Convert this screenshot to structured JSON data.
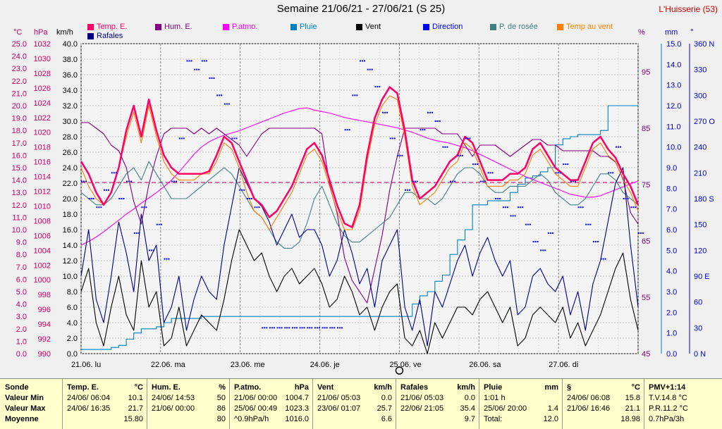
{
  "title": "Semaine 21/06/21 - 27/06/21 (S 25)",
  "station": "L'Huisserie (53)",
  "units": {
    "temp": "°C",
    "press": "hPa",
    "wind": "km/h",
    "hum": "%",
    "rain": "mm",
    "dir": "°"
  },
  "legend": [
    {
      "label": "Temp. E.",
      "color": "#ff0066"
    },
    {
      "label": "Hum. E.",
      "color": "#800080"
    },
    {
      "label": "P.atmo.",
      "color": "#ff00ff"
    },
    {
      "label": "Pluie",
      "color": "#0080c0"
    },
    {
      "label": "Vent",
      "color": "#000000"
    },
    {
      "label": "Direction",
      "color": "#0000ff"
    },
    {
      "label": "P. de rosée",
      "color": "#408080"
    },
    {
      "label": "Temp au vent",
      "color": "#ff8000"
    },
    {
      "label": "Rafales",
      "color": "#000080"
    }
  ],
  "chart_data": {
    "type": "line",
    "days": [
      "21.06. lu",
      "22.06. ma",
      "23.06. me",
      "24.06. je",
      "25.06. ve",
      "26.06. sa",
      "27.06. di"
    ],
    "axes": {
      "temp": {
        "min": 0.0,
        "max": 25.0,
        "ticks": [
          "25.0",
          "24.0",
          "23.0",
          "22.0",
          "21.0",
          "20.0",
          "19.0",
          "18.0",
          "17.0",
          "16.0",
          "15.0",
          "14.0",
          "13.0",
          "12.0",
          "11.0",
          "10.0",
          "9.0",
          "8.0",
          "7.0",
          "6.0",
          "5.0",
          "4.0",
          "3.0",
          "2.0",
          "1.0",
          "0.0"
        ]
      },
      "press": {
        "min": 990,
        "max": 1032,
        "ticks": [
          "1032",
          "1030",
          "1028",
          "1026",
          "1024",
          "1022",
          "1020",
          "1018",
          "1016",
          "1014",
          "1012",
          "1010",
          "1008",
          "1006",
          "1004",
          "1002",
          "1000",
          "998",
          "996",
          "994",
          "992",
          "990"
        ]
      },
      "wind": {
        "min": 0.0,
        "max": 40.0,
        "ticks": [
          "40.0",
          "38.0",
          "36.0",
          "34.0",
          "32.0",
          "30.0",
          "28.0",
          "26.0",
          "24.0",
          "22.0",
          "20.0",
          "18.0",
          "16.0",
          "14.0",
          "12.0",
          "10.0",
          "8.0",
          "6.0",
          "4.0",
          "2.0",
          "0.0"
        ]
      },
      "hum": {
        "min": 45,
        "max": 100,
        "ticks": [
          "95",
          "85",
          "75",
          "65",
          "55",
          "45"
        ]
      },
      "rain": {
        "min": 0.0,
        "max": 15.0,
        "ticks": [
          "15.0",
          "14.0",
          "13.0",
          "12.0",
          "11.0",
          "10.0",
          "9.0",
          "8.0",
          "7.0",
          "6.0",
          "5.0",
          "4.0",
          "3.0",
          "2.0",
          "1.0",
          "0.0"
        ]
      },
      "dir": {
        "min": 0,
        "max": 360,
        "ticks": [
          "360 N",
          "330",
          "300",
          "270 O",
          "240",
          "210",
          "180 S",
          "150",
          "120",
          "90 E",
          "60",
          "30",
          "0 N"
        ]
      }
    },
    "series": [
      {
        "name": "Temp. E.",
        "axis": "temp",
        "color": "#ff0066",
        "values": [
          15.5,
          14.5,
          13.0,
          12.0,
          13.0,
          15.0,
          18.0,
          20.0,
          17.5,
          20.5,
          18.0,
          16.0,
          15.0,
          14.5,
          14.5,
          14.5,
          14.5,
          14.7,
          16.0,
          17.5,
          17.0,
          15.5,
          14.0,
          12.5,
          12.0,
          11.0,
          11.5,
          12.5,
          13.5,
          15.0,
          16.5,
          17.0,
          16.0,
          14.0,
          12.0,
          10.5,
          10.2,
          12.0,
          16.0,
          19.0,
          20.5,
          21.5,
          21.0,
          18.0,
          14.0,
          12.5,
          13.0,
          13.5,
          14.5,
          15.5,
          16.0,
          17.5,
          17.0,
          15.5,
          14.0,
          14.0,
          14.0,
          14.5,
          14.5,
          15.0,
          16.5,
          17.0,
          16.0,
          15.0,
          14.5,
          14.0,
          14.0,
          15.5,
          17.0,
          17.5,
          16.5,
          15.8,
          14.5,
          13.5,
          12.0
        ]
      },
      {
        "name": "Hum. E.",
        "axis": "hum",
        "color": "#800080",
        "values": [
          86,
          86,
          85,
          84,
          82,
          81,
          78,
          72,
          68,
          75,
          80,
          84,
          85,
          85,
          85,
          84,
          85,
          84,
          85,
          84,
          83,
          82,
          80,
          82,
          84,
          85,
          85,
          85,
          85,
          85,
          85,
          85,
          84,
          75,
          70,
          62,
          58,
          56,
          54,
          60,
          66,
          74,
          80,
          85,
          85,
          85,
          85,
          85,
          84,
          84,
          84,
          82,
          80,
          82,
          82,
          82,
          81,
          80,
          81,
          82,
          83,
          83,
          82,
          82,
          81,
          81,
          81,
          81,
          81,
          80,
          80,
          79,
          76,
          70,
          68
        ]
      },
      {
        "name": "P.atmo.",
        "axis": "press",
        "color": "#ff00ff",
        "values": [
          1004.7,
          1005.2,
          1005.8,
          1006.5,
          1007.3,
          1008.1,
          1008.9,
          1009.6,
          1010.4,
          1011.1,
          1011.8,
          1012.6,
          1013.5,
          1014.6,
          1015.8,
          1017.0,
          1018.0,
          1018.7,
          1019.2,
          1019.6,
          1019.9,
          1020.2,
          1020.6,
          1021.0,
          1021.4,
          1021.8,
          1022.2,
          1022.6,
          1022.9,
          1023.2,
          1023.3,
          1023.0,
          1022.8,
          1022.6,
          1022.3,
          1022.0,
          1021.8,
          1021.6,
          1021.4,
          1021.2,
          1021.0,
          1020.8,
          1020.6,
          1020.3,
          1020.0,
          1019.6,
          1019.2,
          1018.9,
          1018.7,
          1018.5,
          1018.2,
          1017.9,
          1017.5,
          1017.0,
          1016.5,
          1016.0,
          1015.5,
          1015.0,
          1014.5,
          1014.0,
          1013.6,
          1013.2,
          1012.8,
          1012.4,
          1012.0,
          1011.6,
          1011.4,
          1011.2,
          1011.2,
          1011.4,
          1011.8,
          1012.2,
          1012.6,
          1013.0,
          1013.4
        ]
      },
      {
        "name": "Pluie",
        "axis": "rain",
        "color": "#0080c0",
        "values": [
          0.2,
          0.2,
          0.2,
          0.2,
          0.3,
          0.4,
          0.7,
          1.0,
          1.2,
          1.2,
          1.3,
          1.5,
          1.7,
          1.7,
          1.7,
          1.7,
          1.8,
          1.8,
          1.8,
          1.8,
          1.8,
          1.8,
          1.8,
          1.8,
          1.8,
          1.8,
          1.8,
          1.8,
          1.8,
          1.8,
          1.8,
          1.8,
          1.8,
          1.8,
          1.8,
          1.8,
          1.8,
          1.8,
          1.8,
          1.8,
          1.8,
          1.8,
          1.8,
          1.8,
          2.4,
          2.8,
          3.0,
          3.5,
          3.8,
          4.8,
          5.5,
          6.0,
          7.2,
          7.2,
          7.4,
          7.4,
          7.4,
          7.8,
          8.2,
          8.5,
          8.6,
          8.8,
          9.0,
          10.1,
          10.4,
          10.5,
          10.6,
          10.6,
          10.6,
          10.8,
          12.0,
          12.0,
          12.0,
          12.0,
          12.0
        ]
      },
      {
        "name": "Vent",
        "axis": "wind",
        "color": "#000000",
        "values": [
          8.0,
          11.0,
          4.0,
          1.0,
          6.0,
          10.0,
          5.0,
          3.0,
          12.0,
          6.0,
          8.0,
          1.0,
          2.0,
          6.0,
          1.0,
          3.0,
          5.0,
          4.0,
          3.0,
          7.0,
          12.0,
          16.0,
          14.0,
          12.0,
          13.0,
          10.0,
          8.0,
          10.0,
          11.0,
          9.0,
          10.0,
          11.0,
          9.0,
          6.0,
          7.0,
          10.0,
          8.0,
          5.0,
          6.0,
          3.0,
          6.0,
          8.0,
          9.0,
          2.0,
          1.0,
          3.0,
          0.0,
          4.0,
          2.0,
          4.0,
          6.0,
          6.0,
          5.0,
          7.0,
          8.0,
          6.0,
          4.0,
          6.0,
          1.0,
          2.0,
          5.0,
          6.0,
          5.0,
          4.0,
          6.0,
          2.0,
          4.0,
          1.0,
          3.0,
          5.0,
          8.0,
          11.0,
          13.0,
          7.0,
          3.0
        ]
      },
      {
        "name": "Rafales",
        "axis": "wind",
        "color": "#000080",
        "values": [
          10.0,
          16.0,
          7.0,
          4.0,
          10.0,
          17.0,
          13.0,
          8.0,
          18.0,
          12.0,
          14.0,
          4.0,
          6.0,
          10.0,
          3.0,
          7.0,
          10.0,
          8.0,
          7.0,
          14.0,
          19.0,
          24.0,
          22.0,
          20.0,
          19.0,
          17.0,
          14.0,
          16.0,
          18.0,
          15.0,
          16.0,
          16.0,
          14.0,
          10.0,
          12.0,
          16.0,
          13.0,
          9.0,
          11.0,
          6.0,
          12.0,
          14.0,
          16.0,
          6.0,
          3.0,
          7.0,
          1.0,
          8.0,
          6.0,
          9.0,
          12.0,
          14.0,
          10.0,
          13.0,
          15.0,
          12.0,
          10.0,
          12.0,
          5.0,
          6.0,
          10.0,
          11.0,
          9.0,
          8.0,
          10.0,
          5.0,
          8.0,
          3.0,
          9.0,
          12.0,
          17.0,
          22.0,
          24.0,
          14.0,
          6.0
        ]
      },
      {
        "name": "P. de rosée",
        "axis": "temp",
        "color": "#408080",
        "values": [
          13.0,
          12.5,
          12.0,
          12.0,
          12.5,
          13.5,
          14.5,
          15.0,
          14.0,
          15.5,
          14.5,
          13.5,
          12.5,
          12.5,
          12.5,
          13.0,
          13.5,
          14.0,
          14.5,
          15.0,
          14.5,
          13.5,
          12.5,
          11.5,
          11.0,
          10.0,
          9.0,
          8.5,
          8.5,
          9.0,
          10.5,
          12.5,
          13.5,
          12.0,
          10.5,
          9.5,
          9.0,
          9.0,
          9.5,
          10.0,
          10.5,
          11.0,
          12.0,
          13.0,
          13.0,
          12.5,
          12.5,
          12.0,
          12.5,
          13.5,
          14.5,
          15.0,
          15.0,
          14.5,
          13.5,
          13.0,
          13.0,
          13.5,
          13.5,
          13.5,
          14.0,
          14.5,
          14.0,
          13.0,
          12.5,
          12.0,
          12.0,
          12.5,
          13.5,
          14.5,
          14.5,
          14.0,
          13.0,
          12.5,
          12.0
        ]
      },
      {
        "name": "Temp au vent",
        "axis": "temp",
        "color": "#ff8000",
        "values": [
          15.0,
          13.5,
          12.5,
          12.0,
          13.0,
          15.0,
          17.5,
          19.5,
          17.0,
          20.0,
          17.5,
          15.5,
          14.5,
          14.0,
          14.0,
          14.0,
          14.5,
          14.5,
          15.5,
          17.0,
          16.5,
          15.0,
          13.0,
          11.5,
          11.0,
          10.0,
          11.0,
          12.0,
          13.0,
          14.5,
          16.0,
          16.5,
          15.5,
          13.5,
          11.5,
          10.0,
          10.0,
          11.5,
          15.5,
          18.5,
          20.0,
          20.8,
          20.5,
          17.5,
          13.5,
          12.0,
          12.5,
          13.0,
          14.0,
          15.0,
          15.5,
          17.0,
          16.5,
          15.0,
          13.5,
          13.5,
          13.5,
          14.0,
          14.0,
          14.5,
          16.0,
          16.5,
          15.5,
          14.5,
          14.0,
          13.5,
          13.5,
          15.0,
          16.5,
          17.0,
          16.0,
          15.5,
          14.0,
          13.0,
          11.5
        ]
      },
      {
        "name": "Direction",
        "axis": "dir",
        "color": "#0000ff",
        "values": [
          200,
          180,
          170,
          190,
          210,
          180,
          200,
          140,
          170,
          120,
          150,
          110,
          200,
          250,
          340,
          330,
          340,
          320,
          300,
          290,
          250,
          190,
          180,
          170,
          30,
          30,
          30,
          30,
          30,
          30,
          30,
          30,
          30,
          30,
          30,
          260,
          300,
          340,
          330,
          310,
          280,
          250,
          230,
          190,
          200,
          260,
          280,
          270,
          240,
          200,
          230,
          250,
          220,
          200,
          210,
          180,
          170,
          160,
          170,
          150,
          130,
          120,
          140,
          210,
          220,
          200,
          170,
          150,
          130,
          110,
          210,
          240,
          180,
          170,
          140
        ]
      }
    ]
  },
  "table": {
    "rows": [
      "Sonde",
      "Valeur Min",
      "Valeur Max",
      "Moyenne"
    ],
    "columns": [
      {
        "header": "Temp. E.",
        "unit": "°C",
        "min_date": "24/06/ 06:04",
        "min_val": "10.1",
        "max_date": "24/06/ 16:35",
        "max_val": "21.7",
        "mean_label": "",
        "mean_val": "15.80"
      },
      {
        "header": "Hum. E.",
        "unit": "%",
        "min_date": "24/06/ 14:53",
        "min_val": "50",
        "max_date": "21/06/ 00:00",
        "max_val": "86",
        "mean_label": "",
        "mean_val": "80"
      },
      {
        "header": "P.atmo.",
        "unit": "hPa",
        "min_date": "21/06/ 00:00",
        "min_val": "1004.7",
        "max_date": "25/06/ 00:49",
        "max_val": "1023.3",
        "mean_label": "^0.9hPa/h",
        "mean_val": "1016.0"
      },
      {
        "header": "Vent",
        "unit": "km/h",
        "min_date": "21/06/ 05:03",
        "min_val": "0.0",
        "max_date": "23/06/ 01:07",
        "max_val": "25.7",
        "mean_label": "",
        "mean_val": "6.6"
      },
      {
        "header": "Rafales",
        "unit": "km/h",
        "min_date": "21/06/ 05:03",
        "min_val": "0.0",
        "max_date": "22/06/ 21:05",
        "max_val": "35.4",
        "mean_label": "",
        "mean_val": "9.7"
      },
      {
        "header": "Pluie",
        "unit": "mm",
        "min_date": "1:01 h",
        "min_val": "",
        "max_date": "25/06/ 20:00",
        "max_val": "1.4",
        "mean_label": "Total:",
        "mean_val": "12.0"
      },
      {
        "header": "§",
        "unit": "°C",
        "min_date": "24/06/ 06:08",
        "min_val": "15.8",
        "max_date": "21/06/ 16:46",
        "max_val": "21.1",
        "mean_label": "",
        "mean_val": "18.98"
      }
    ],
    "pmv": {
      "header": "PMV+1:14",
      "line1": "T.V.14.8 °C",
      "line2": "P.R.11.2 °C",
      "line3": "0.7hPa/3h"
    }
  }
}
